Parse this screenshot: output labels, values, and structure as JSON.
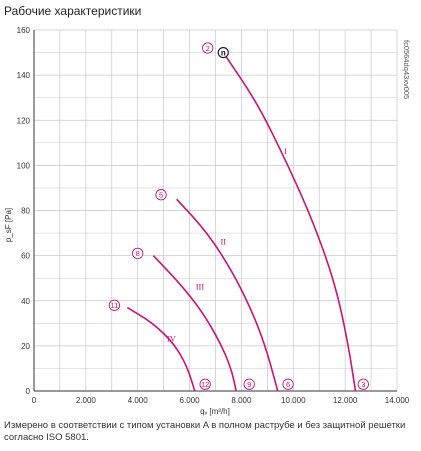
{
  "title": "Рабочие характеристики",
  "footnote": "Измерено в соответствии с типом установки A в полном раструбе и без защитной решетки согласно ISO 5801.",
  "reference": "fc0564dq43xv005",
  "colors": {
    "curve": "#cc1177",
    "grid": "#c8c8c8",
    "axis": "#333333"
  },
  "chart_data": {
    "type": "line",
    "title": "Рабочие характеристики",
    "xlabel": "qᵥ [m³/h]",
    "ylabel": "p_sF [Pa]",
    "xlim": [
      0,
      14000
    ],
    "ylim": [
      0,
      160
    ],
    "x_ticks": [
      0,
      2000,
      4000,
      6000,
      8000,
      10000,
      12000,
      14000
    ],
    "x_tick_labels": [
      "0",
      "2.000",
      "4.000",
      "6.000",
      "8.000",
      "10.000",
      "12.000",
      "14.000"
    ],
    "y_ticks": [
      0,
      20,
      40,
      60,
      80,
      100,
      120,
      140,
      160
    ],
    "y_tick_labels": [
      "0",
      "20",
      "40",
      "60",
      "80",
      "100",
      "120",
      "140",
      "160"
    ],
    "grid": true,
    "series": [
      {
        "name": "I",
        "points": [
          [
            7300,
            150
          ],
          [
            8600,
            128
          ],
          [
            9800,
            100
          ],
          [
            10800,
            74
          ],
          [
            11600,
            48
          ],
          [
            12100,
            22
          ],
          [
            12400,
            0
          ]
        ]
      },
      {
        "name": "II",
        "points": [
          [
            5500,
            85
          ],
          [
            6700,
            70
          ],
          [
            7700,
            52
          ],
          [
            8500,
            33
          ],
          [
            9000,
            17
          ],
          [
            9400,
            0
          ]
        ]
      },
      {
        "name": "III",
        "points": [
          [
            4600,
            60
          ],
          [
            5600,
            48
          ],
          [
            6500,
            35
          ],
          [
            7200,
            21
          ],
          [
            7600,
            10
          ],
          [
            7800,
            0
          ]
        ]
      },
      {
        "name": "IV",
        "points": [
          [
            3600,
            37
          ],
          [
            4600,
            30
          ],
          [
            5400,
            21
          ],
          [
            5900,
            11
          ],
          [
            6200,
            0
          ]
        ]
      }
    ],
    "series_labels": [
      {
        "text": "I",
        "x": 9700,
        "y": 105
      },
      {
        "text": "II",
        "x": 7300,
        "y": 65
      },
      {
        "text": "III",
        "x": 6400,
        "y": 45
      },
      {
        "text": "IV",
        "x": 5300,
        "y": 22
      }
    ],
    "markers": [
      {
        "text": "2",
        "x": 6700,
        "y": 152
      },
      {
        "text": "5",
        "x": 4900,
        "y": 87
      },
      {
        "text": "8",
        "x": 4000,
        "y": 61
      },
      {
        "text": "11",
        "x": 3100,
        "y": 38
      },
      {
        "text": "3",
        "x": 12700,
        "y": 3
      },
      {
        "text": "6",
        "x": 9800,
        "y": 3
      },
      {
        "text": "9",
        "x": 8300,
        "y": 3
      },
      {
        "text": "12",
        "x": 6600,
        "y": 3
      }
    ],
    "operating_point": {
      "text": "n",
      "x": 7300,
      "y": 150
    }
  }
}
